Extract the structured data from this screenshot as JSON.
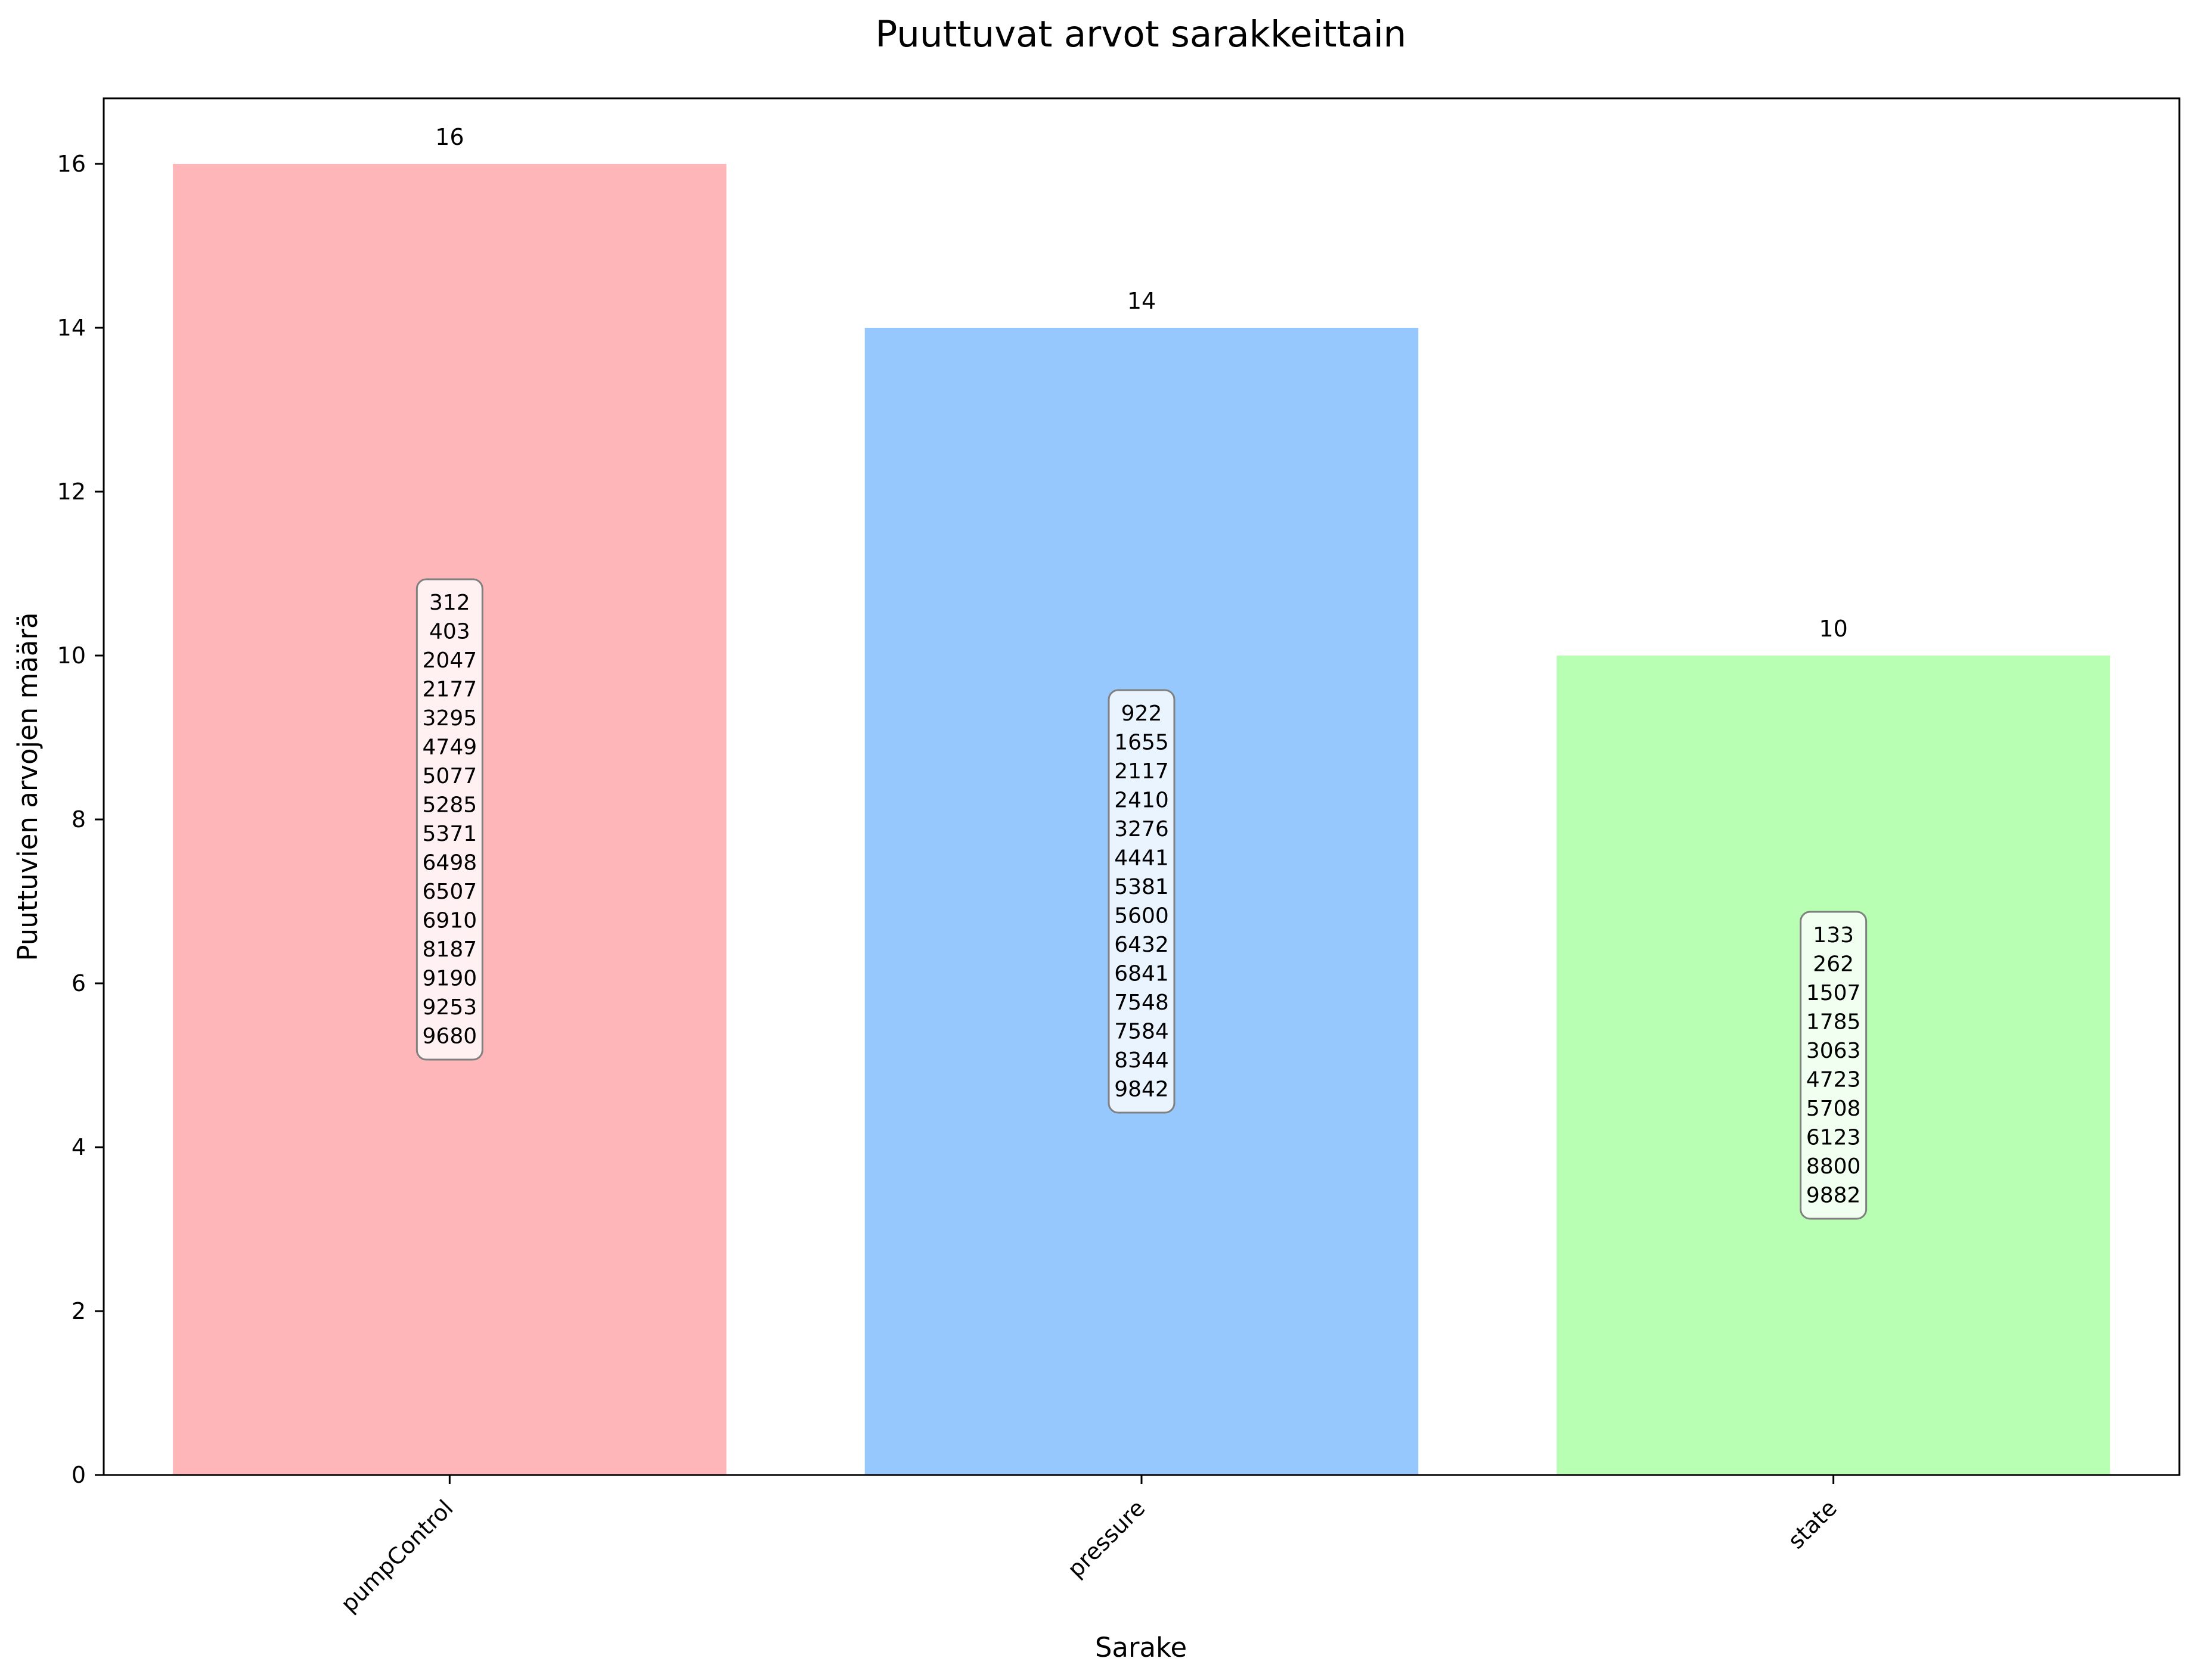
{
  "chart_data": {
    "type": "bar",
    "title": "Puuttuvat arvot sarakkeittain",
    "xlabel": "Sarake",
    "ylabel": "Puuttuvien arvojen määrä",
    "categories": [
      "pumpControl",
      "pressure",
      "state"
    ],
    "values": [
      16,
      14,
      10
    ],
    "bar_colors": [
      "#ffb6b9",
      "#96c8fe",
      "#b8ffb4"
    ],
    "ylim": [
      0,
      16.8
    ],
    "yticks": [
      0,
      2,
      4,
      6,
      8,
      10,
      12,
      14,
      16
    ],
    "grid": false,
    "legend": "none",
    "value_labels": [
      "16",
      "14",
      "10"
    ],
    "missing_indices": [
      [
        "312",
        "403",
        "2047",
        "2177",
        "3295",
        "4749",
        "5077",
        "5285",
        "5371",
        "6498",
        "6507",
        "6910",
        "8187",
        "9190",
        "9253",
        "9680"
      ],
      [
        "922",
        "1655",
        "2117",
        "2410",
        "3276",
        "4441",
        "5381",
        "5600",
        "6432",
        "6841",
        "7548",
        "7584",
        "8344",
        "9842"
      ],
      [
        "133",
        "262",
        "1507",
        "1785",
        "3063",
        "4723",
        "5708",
        "6123",
        "8800",
        "9882"
      ]
    ]
  }
}
